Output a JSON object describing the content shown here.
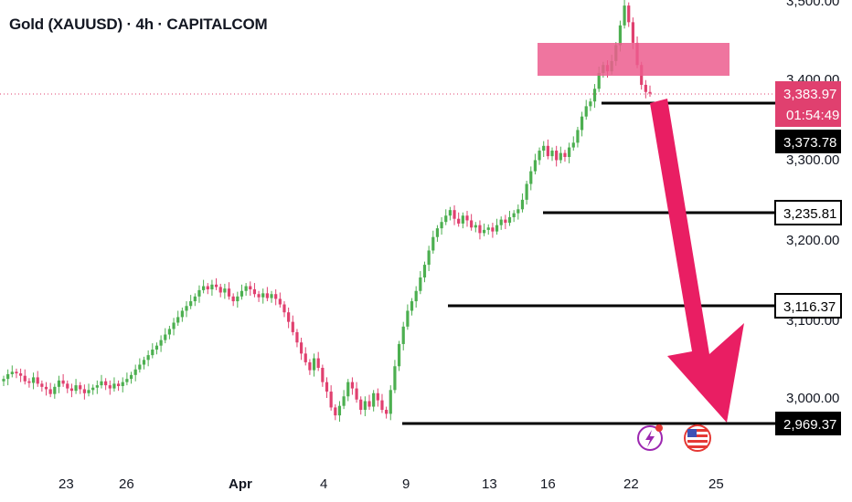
{
  "title": "Gold (XAUUSD) · 4h · CAPITALCOM",
  "colors": {
    "up": "#4caf50",
    "down": "#e0406f",
    "zone": "#ec5d8e",
    "arrow": "#e91e63",
    "last_price_bg": "#e0406f",
    "level_bg": "#000000",
    "event_purple": "#9c27b0",
    "event_red": "#e53935"
  },
  "price_axis": {
    "ticks": [
      "3,500.00",
      "3,400.00",
      "3,300.00",
      "3,200.00",
      "3,100.00",
      "3,000.00"
    ],
    "last_price": "3,383.97",
    "countdown": "01:54:49"
  },
  "time_axis": {
    "labels": [
      "23",
      "26",
      "Apr",
      "4",
      "9",
      "13",
      "16",
      "22",
      "25"
    ]
  },
  "levels": [
    {
      "value": 3373.78,
      "label": "3,373.78"
    },
    {
      "value": 3235.81,
      "label": "3,235.81"
    },
    {
      "value": 3116.37,
      "label": "3,116.37"
    },
    {
      "value": 2969.37,
      "label": "2,969.37"
    }
  ],
  "chart_data": {
    "type": "candlestick",
    "title": "Gold (XAUUSD) · 4h · CAPITALCOM",
    "y_range": [
      2920,
      3510
    ],
    "last_price": 3383.97,
    "resistance_zone": [
      3403,
      3448
    ],
    "projection": {
      "from": 3373.78,
      "to": 2969.37
    },
    "closes": [
      3024,
      3030,
      3033,
      3031,
      3028,
      3021,
      3019,
      3026,
      3018,
      3014,
      3011,
      3005,
      3014,
      3022,
      3018,
      3012,
      3009,
      3016,
      3011,
      3006,
      3010,
      3013,
      3016,
      3021,
      3016,
      3012,
      3018,
      3015,
      3020,
      3024,
      3029,
      3036,
      3042,
      3048,
      3054,
      3061,
      3066,
      3073,
      3080,
      3087,
      3095,
      3102,
      3110,
      3116,
      3122,
      3128,
      3136,
      3141,
      3137,
      3143,
      3140,
      3133,
      3138,
      3128,
      3122,
      3128,
      3135,
      3141,
      3137,
      3131,
      3127,
      3132,
      3126,
      3131,
      3125,
      3118,
      3108,
      3096,
      3083,
      3070,
      3056,
      3045,
      3035,
      3050,
      3038,
      3020,
      3008,
      2988,
      2978,
      2990,
      3002,
      3020,
      3012,
      2998,
      2985,
      2996,
      2989,
      3006,
      2997,
      2985,
      2980,
      3010,
      3040,
      3068,
      3090,
      3110,
      3122,
      3135,
      3152,
      3168,
      3186,
      3203,
      3214,
      3222,
      3230,
      3237,
      3226,
      3220,
      3230,
      3224,
      3215,
      3218,
      3208,
      3212,
      3215,
      3210,
      3218,
      3225,
      3221,
      3228,
      3233,
      3238,
      3250,
      3270,
      3286,
      3300,
      3312,
      3318,
      3305,
      3312,
      3300,
      3309,
      3304,
      3316,
      3322,
      3338,
      3355,
      3368,
      3374,
      3390,
      3410,
      3420,
      3412,
      3425,
      3445,
      3470,
      3495,
      3474,
      3448,
      3420,
      3395,
      3386,
      3384
    ]
  }
}
